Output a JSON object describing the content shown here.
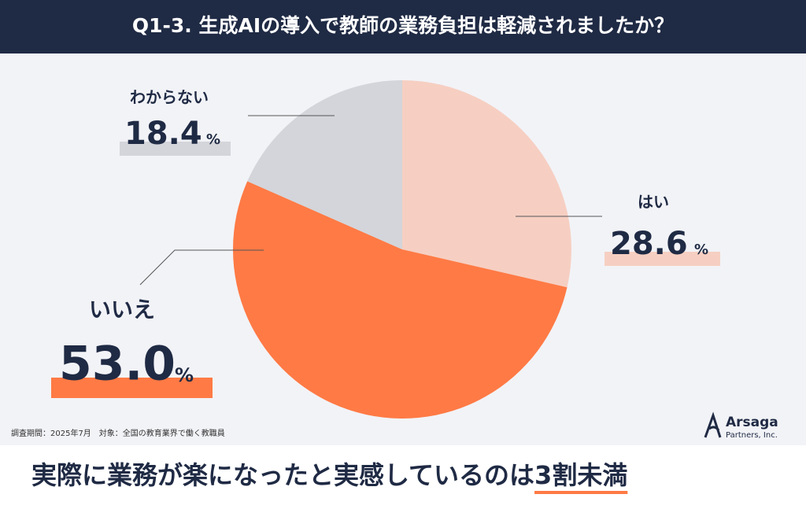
{
  "chart_data": {
    "type": "pie",
    "title": "Q1-3. 生成AIの導入で教師の業務負担は軽減されましたか？",
    "categories": [
      "はい",
      "いいえ",
      "わからない"
    ],
    "values": [
      28.6,
      53.0,
      18.4
    ],
    "value_labels": [
      "28.6",
      "53.0",
      "18.4"
    ],
    "unit": "%",
    "colors": [
      "#f6cfc2",
      "#ff7a45",
      "#d3d5da"
    ],
    "note": "調査期間：2025年7月　対象：全国の教育業界で働く教職員",
    "logo": {
      "name": "Arsaga",
      "sub": "Partners, Inc."
    },
    "headline": {
      "text": "実際に業務が楽になったと実感しているのは",
      "emphasis": "3割未満"
    }
  }
}
